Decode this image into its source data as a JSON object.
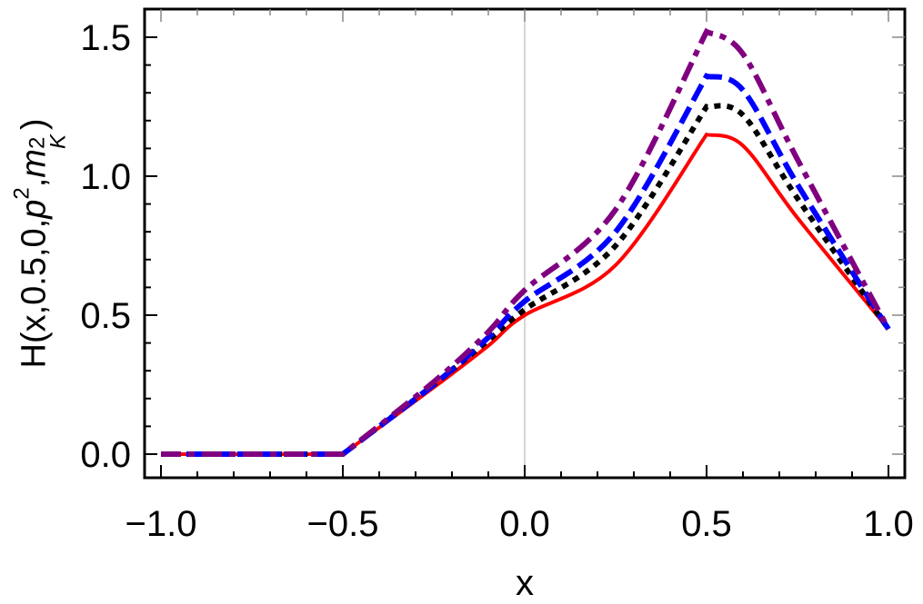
{
  "chart_data": {
    "type": "line",
    "title": "",
    "xlabel": "x",
    "ylabel": "H(x,0.5,0,p^2,m_K^2)",
    "ylabel_parts": {
      "prefix": "H(x,0.5,0,",
      "p": "p",
      "p_sup": "2",
      "comma": ",",
      "m": "m",
      "m_sub": "K",
      "m_sup": "2",
      "suffix": ")"
    },
    "xlim": [
      -1.0,
      1.0
    ],
    "ylim": [
      -0.08,
      1.6
    ],
    "x_ticks": [
      -1.0,
      -0.5,
      0.0,
      0.5,
      1.0
    ],
    "x_tick_labels": [
      "−1.0",
      "−0.5",
      "0.0",
      "0.5",
      "1.0"
    ],
    "y_ticks": [
      0.0,
      0.5,
      1.0,
      1.5
    ],
    "y_tick_labels": [
      "0.0",
      "0.5",
      "1.0",
      "1.5"
    ],
    "grid": false,
    "vertical_reference_line_x": 0.0,
    "legend": null,
    "series": [
      {
        "name": "red-solid",
        "color": "#ff0000",
        "style": "solid",
        "x": [
          -1.0,
          -0.5,
          -0.25,
          -0.1,
          0.0,
          0.25,
          0.5,
          0.6,
          0.75,
          1.0
        ],
        "y": [
          0.0,
          0.0,
          0.24,
          0.39,
          0.5,
          0.68,
          1.15,
          1.11,
          0.85,
          0.45
        ]
      },
      {
        "name": "black-dotted",
        "color": "#000000",
        "style": "dotted",
        "x": [
          -1.0,
          -0.5,
          -0.25,
          -0.1,
          0.0,
          0.25,
          0.5,
          0.6,
          0.75,
          1.0
        ],
        "y": [
          0.0,
          0.0,
          0.25,
          0.41,
          0.52,
          0.75,
          1.25,
          1.22,
          0.92,
          0.45
        ]
      },
      {
        "name": "blue-dashed",
        "color": "#0000ff",
        "style": "dashed",
        "x": [
          -1.0,
          -0.5,
          -0.25,
          -0.1,
          0.0,
          0.25,
          0.5,
          0.6,
          0.75,
          1.0
        ],
        "y": [
          0.0,
          0.0,
          0.25,
          0.42,
          0.55,
          0.8,
          1.36,
          1.31,
          0.97,
          0.45
        ]
      },
      {
        "name": "purple-dashdot",
        "color": "#800080",
        "style": "dashdot",
        "x": [
          -1.0,
          -0.5,
          -0.25,
          -0.1,
          0.0,
          0.25,
          0.5,
          0.6,
          0.75,
          1.0
        ],
        "y": [
          0.0,
          0.0,
          0.26,
          0.44,
          0.59,
          0.88,
          1.52,
          1.44,
          1.06,
          0.45
        ]
      }
    ]
  }
}
